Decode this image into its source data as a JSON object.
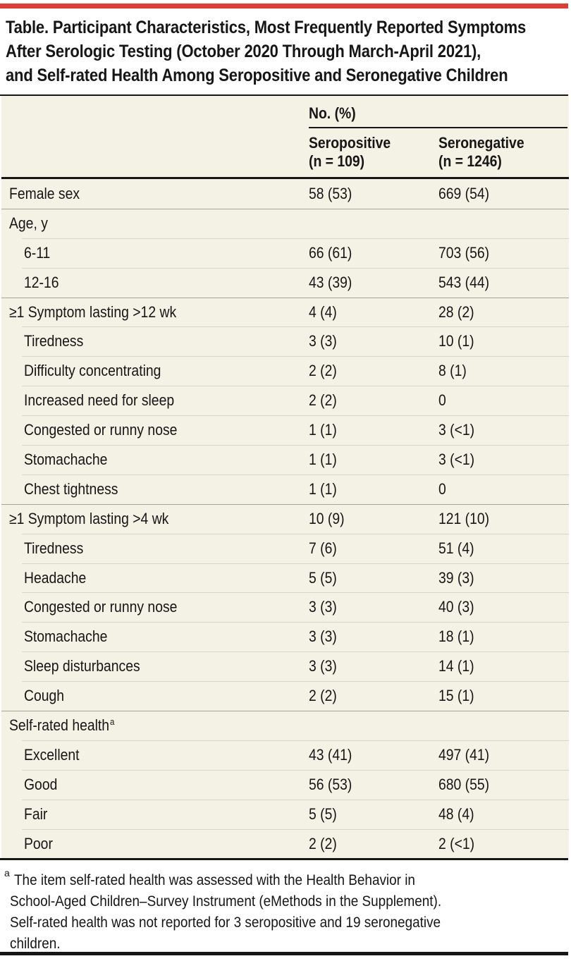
{
  "colors": {
    "accent_red": "#e23b33",
    "table_background": "#f4f1e5",
    "rule_dark": "#161616",
    "row_divider": "#d8d4c6",
    "section_divider": "#a6a399"
  },
  "title": {
    "lines": [
      "Table. Participant Characteristics, Most Frequently Reported Symptoms",
      "After Serologic Testing (October 2020 Through March-April 2021),",
      "and Self-rated Health Among Seropositive and Seronegative Children"
    ]
  },
  "table": {
    "header": {
      "group_label": "No. (%)",
      "columns": [
        {
          "label": "Seropositive",
          "n": "(n = 109)"
        },
        {
          "label": "Seronegative",
          "n": "(n = 1246)"
        }
      ]
    },
    "rows": [
      {
        "label": "Female sex",
        "seropositive": "58 (53)",
        "seronegative": "669 (54)",
        "indent": 0,
        "section_start": false
      },
      {
        "label": "Age, y",
        "seropositive": "",
        "seronegative": "",
        "indent": 0,
        "section_start": true
      },
      {
        "label": "6-11",
        "seropositive": "66 (61)",
        "seronegative": "703 (56)",
        "indent": 1,
        "section_start": false
      },
      {
        "label": "12-16",
        "seropositive": "43 (39)",
        "seronegative": "543 (44)",
        "indent": 1,
        "section_start": false
      },
      {
        "label": "≥1 Symptom lasting >12 wk",
        "seropositive": "4 (4)",
        "seronegative": "28 (2)",
        "indent": 0,
        "section_start": true
      },
      {
        "label": "Tiredness",
        "seropositive": "3 (3)",
        "seronegative": "10 (1)",
        "indent": 1,
        "section_start": false
      },
      {
        "label": "Difficulty concentrating",
        "seropositive": "2 (2)",
        "seronegative": "8 (1)",
        "indent": 1,
        "section_start": false
      },
      {
        "label": "Increased need for sleep",
        "seropositive": "2 (2)",
        "seronegative": "0",
        "indent": 1,
        "section_start": false
      },
      {
        "label": "Congested or runny nose",
        "seropositive": "1 (1)",
        "seronegative": "3 (<1)",
        "indent": 1,
        "section_start": false
      },
      {
        "label": "Stomachache",
        "seropositive": "1 (1)",
        "seronegative": "3 (<1)",
        "indent": 1,
        "section_start": false
      },
      {
        "label": "Chest tightness",
        "seropositive": "1 (1)",
        "seronegative": "0",
        "indent": 1,
        "section_start": false
      },
      {
        "label": "≥1 Symptom lasting >4 wk",
        "seropositive": "10 (9)",
        "seronegative": "121 (10)",
        "indent": 0,
        "section_start": true
      },
      {
        "label": "Tiredness",
        "seropositive": "7 (6)",
        "seronegative": "51 (4)",
        "indent": 1,
        "section_start": false
      },
      {
        "label": "Headache",
        "seropositive": "5 (5)",
        "seronegative": "39 (3)",
        "indent": 1,
        "section_start": false
      },
      {
        "label": "Congested or runny nose",
        "seropositive": "3 (3)",
        "seronegative": "40 (3)",
        "indent": 1,
        "section_start": false
      },
      {
        "label": "Stomachache",
        "seropositive": "3 (3)",
        "seronegative": "18 (1)",
        "indent": 1,
        "section_start": false
      },
      {
        "label": "Sleep disturbances",
        "seropositive": "3 (3)",
        "seronegative": "14 (1)",
        "indent": 1,
        "section_start": false
      },
      {
        "label": "Cough",
        "seropositive": "2 (2)",
        "seronegative": "15 (1)",
        "indent": 1,
        "section_start": false
      },
      {
        "label": "Self-rated health",
        "sup": "a",
        "seropositive": "",
        "seronegative": "",
        "indent": 0,
        "section_start": true
      },
      {
        "label": "Excellent",
        "seropositive": "43 (41)",
        "seronegative": "497 (41)",
        "indent": 1,
        "section_start": false
      },
      {
        "label": "Good",
        "seropositive": "56 (53)",
        "seronegative": "680 (55)",
        "indent": 1,
        "section_start": false
      },
      {
        "label": "Fair",
        "seropositive": "5 (5)",
        "seronegative": "48 (4)",
        "indent": 1,
        "section_start": false
      },
      {
        "label": "Poor",
        "seropositive": "2 (2)",
        "seronegative": "2 (<1)",
        "indent": 1,
        "section_start": false
      }
    ]
  },
  "footnote": {
    "marker": "a",
    "lines": [
      "The item self-rated health was assessed with the Health Behavior in",
      "School-Aged Children–Survey Instrument (eMethods in the Supplement).",
      "Self-rated health was not reported for 3 seropositive and 19 seronegative",
      "children."
    ]
  }
}
